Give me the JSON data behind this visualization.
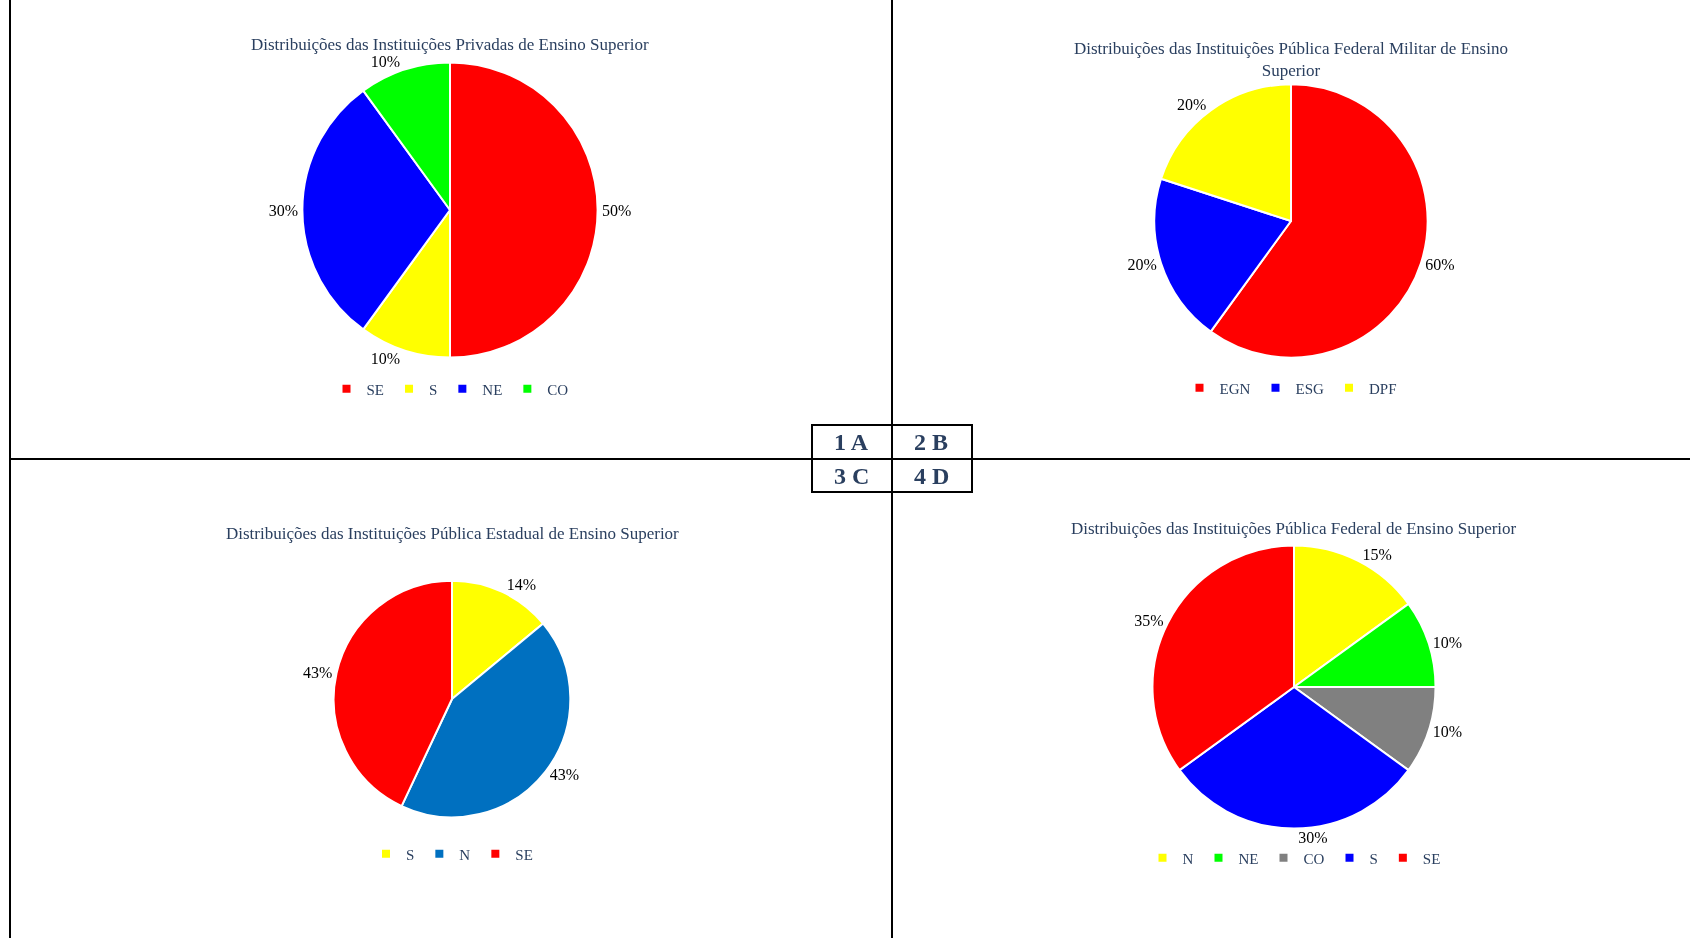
{
  "chart_data": [
    {
      "type": "pie",
      "title": "Distribuições das Instituições Privadas de Ensino Superior",
      "categories": [
        "SE",
        "S",
        "NE",
        "CO"
      ],
      "values": [
        50,
        10,
        30,
        10
      ],
      "value_labels": [
        "50%",
        "10%",
        "30%",
        "10%"
      ],
      "colors": [
        "#ff0000",
        "#ffff00",
        "#0000ff",
        "#00ff00"
      ],
      "legend": "bottom"
    },
    {
      "type": "pie",
      "title": "Distribuições das Instituições Pública Federal Militar de Ensino Superior",
      "categories": [
        "EGN",
        "ESG",
        "DPF"
      ],
      "values": [
        60,
        20,
        20
      ],
      "value_labels": [
        "60%",
        "20%",
        "20%"
      ],
      "colors": [
        "#ff0000",
        "#0000ff",
        "#ffff00"
      ],
      "legend": "bottom"
    },
    {
      "type": "pie",
      "title": "Distribuições das Instituições Pública Estadual de Ensino Superior",
      "categories": [
        "S",
        "N",
        "SE"
      ],
      "values": [
        14,
        43,
        43
      ],
      "value_labels": [
        "14%",
        "43%",
        "43%"
      ],
      "colors": [
        "#ffff00",
        "#0070c0",
        "#ff0000"
      ],
      "legend": "bottom"
    },
    {
      "type": "pie",
      "title": "Distribuições das Instituições Pública Federal de Ensino Superior",
      "categories": [
        "N",
        "NE",
        "CO",
        "S",
        "SE"
      ],
      "values": [
        15,
        10,
        10,
        30,
        35
      ],
      "value_labels": [
        "15%",
        "10%",
        "10%",
        "30%",
        "35%"
      ],
      "colors": [
        "#ffff00",
        "#00ff00",
        "#808080",
        "#0000ff",
        "#ff0000"
      ],
      "legend": "bottom"
    },
    {
      "type": "other",
      "annotations": [
        "1 A",
        "2 B",
        "3 C",
        "4 D"
      ]
    }
  ]
}
